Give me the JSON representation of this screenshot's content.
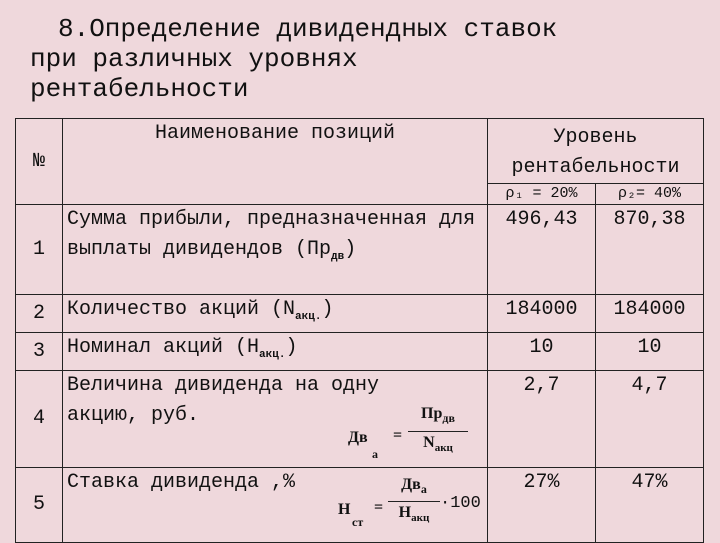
{
  "title": {
    "line1": "8.Определение дивидендных ставок",
    "line2": "при различных уровнях",
    "line3": "рентабельности"
  },
  "table": {
    "header": {
      "no": "№",
      "name": "Наименование позиций",
      "level": "Уровень рентабельности",
      "p1": "ρ₁ = 20%",
      "p2": "ρ₂= 40%"
    },
    "rows": [
      {
        "no": "1",
        "name": "Сумма прибыли, предназначенная для выплаты дивидендов (Пр",
        "name_sub": "дв",
        "name_end": ")",
        "v1": "496,43",
        "v2": "870,38"
      },
      {
        "no": "2",
        "name": "Количество акций (N",
        "name_sub": "акц.",
        "name_end": ")",
        "v1": "184000",
        "v2": "184000"
      },
      {
        "no": "3",
        "name": "Номинал акций (Н",
        "name_sub": "акц.",
        "name_end": ")",
        "v1": "10",
        "v2": "10"
      },
      {
        "no": "4",
        "name": "Величина дивиденда на одну акцию, руб.",
        "v1": "2,7",
        "v2": "4,7",
        "formula": {
          "lhs": "Дв",
          "lhs_sub": "а",
          "eq": "=",
          "num": "Пр",
          "num_sub": "дв",
          "den": "N",
          "den_sub": "акц"
        }
      },
      {
        "no": "5",
        "name": "Ставка дивиденда ,%",
        "v1": "27%",
        "v2": "47%",
        "formula": {
          "lhs": "Н",
          "lhs_sub": "ст",
          "eq": "=",
          "num": "Дв",
          "num_sub": "а",
          "den": "Н",
          "den_sub": "акц",
          "mult": "·100"
        }
      }
    ]
  }
}
